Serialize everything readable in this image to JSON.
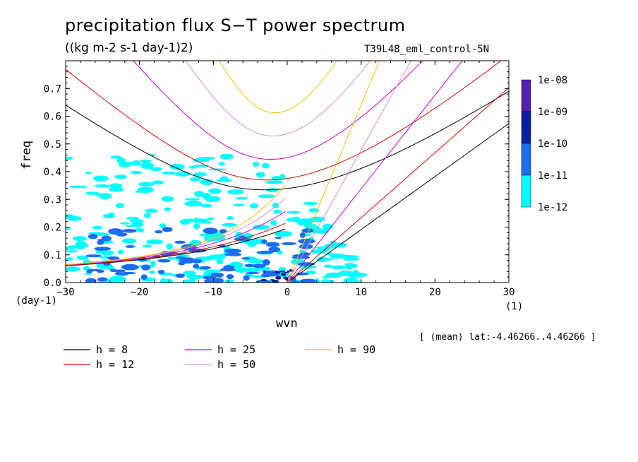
{
  "title": "precipitation flux S−T power spectrum",
  "units": "((kg m-2 s-1 day-1)2)",
  "run_label": "T39L48_eml_control-5N",
  "x_label": "wvn",
  "x_unit": "(1)",
  "y_label": "freq",
  "y_unit": "(day-1)",
  "lat_note": "[ (mean) lat:-4.46266..4.46266 ]",
  "colorbar": {
    "labels": [
      "1e-08",
      "1e-09",
      "1e-10",
      "1e-11",
      "1e-12"
    ],
    "colors": [
      "#5520b0",
      "#0a1fa0",
      "#1a6cf0",
      "#00ffff"
    ]
  },
  "chart_data": {
    "type": "heatmap",
    "title": "precipitation flux S−T power spectrum",
    "xlabel": "wvn",
    "ylabel": "freq",
    "xlim": [
      -30,
      30
    ],
    "ylim": [
      0,
      0.8
    ],
    "x_ticks": [
      -30,
      -20,
      -10,
      0,
      10,
      20,
      30
    ],
    "y_ticks": [
      0.0,
      0.1,
      0.2,
      0.3,
      0.4,
      0.5,
      0.6,
      0.7
    ],
    "contour_levels": [
      "1e-12",
      "1e-11",
      "1e-10",
      "1e-09",
      "1e-08"
    ],
    "legend_position": "bottom",
    "dispersion_curves": [
      {
        "name": "h =  8",
        "h": 8,
        "color": "#000000"
      },
      {
        "name": "h = 12",
        "h": 12,
        "color": "#e00000"
      },
      {
        "name": "h = 25",
        "h": 25,
        "color": "#cc00cc"
      },
      {
        "name": "h = 50",
        "h": 50,
        "color": "#dd88dd"
      },
      {
        "name": "h = 90",
        "h": 90,
        "color": "#f0c000"
      }
    ],
    "spectral_regions": [
      {
        "level": "1e-12",
        "x": [
          -30,
          10
        ],
        "y": [
          0.0,
          0.46
        ]
      },
      {
        "level": "1e-11",
        "x": [
          -27,
          3
        ],
        "y": [
          0.0,
          0.2
        ]
      },
      {
        "level": "1e-10",
        "x": [
          -4,
          1
        ],
        "y": [
          0.0,
          0.05
        ]
      }
    ]
  }
}
